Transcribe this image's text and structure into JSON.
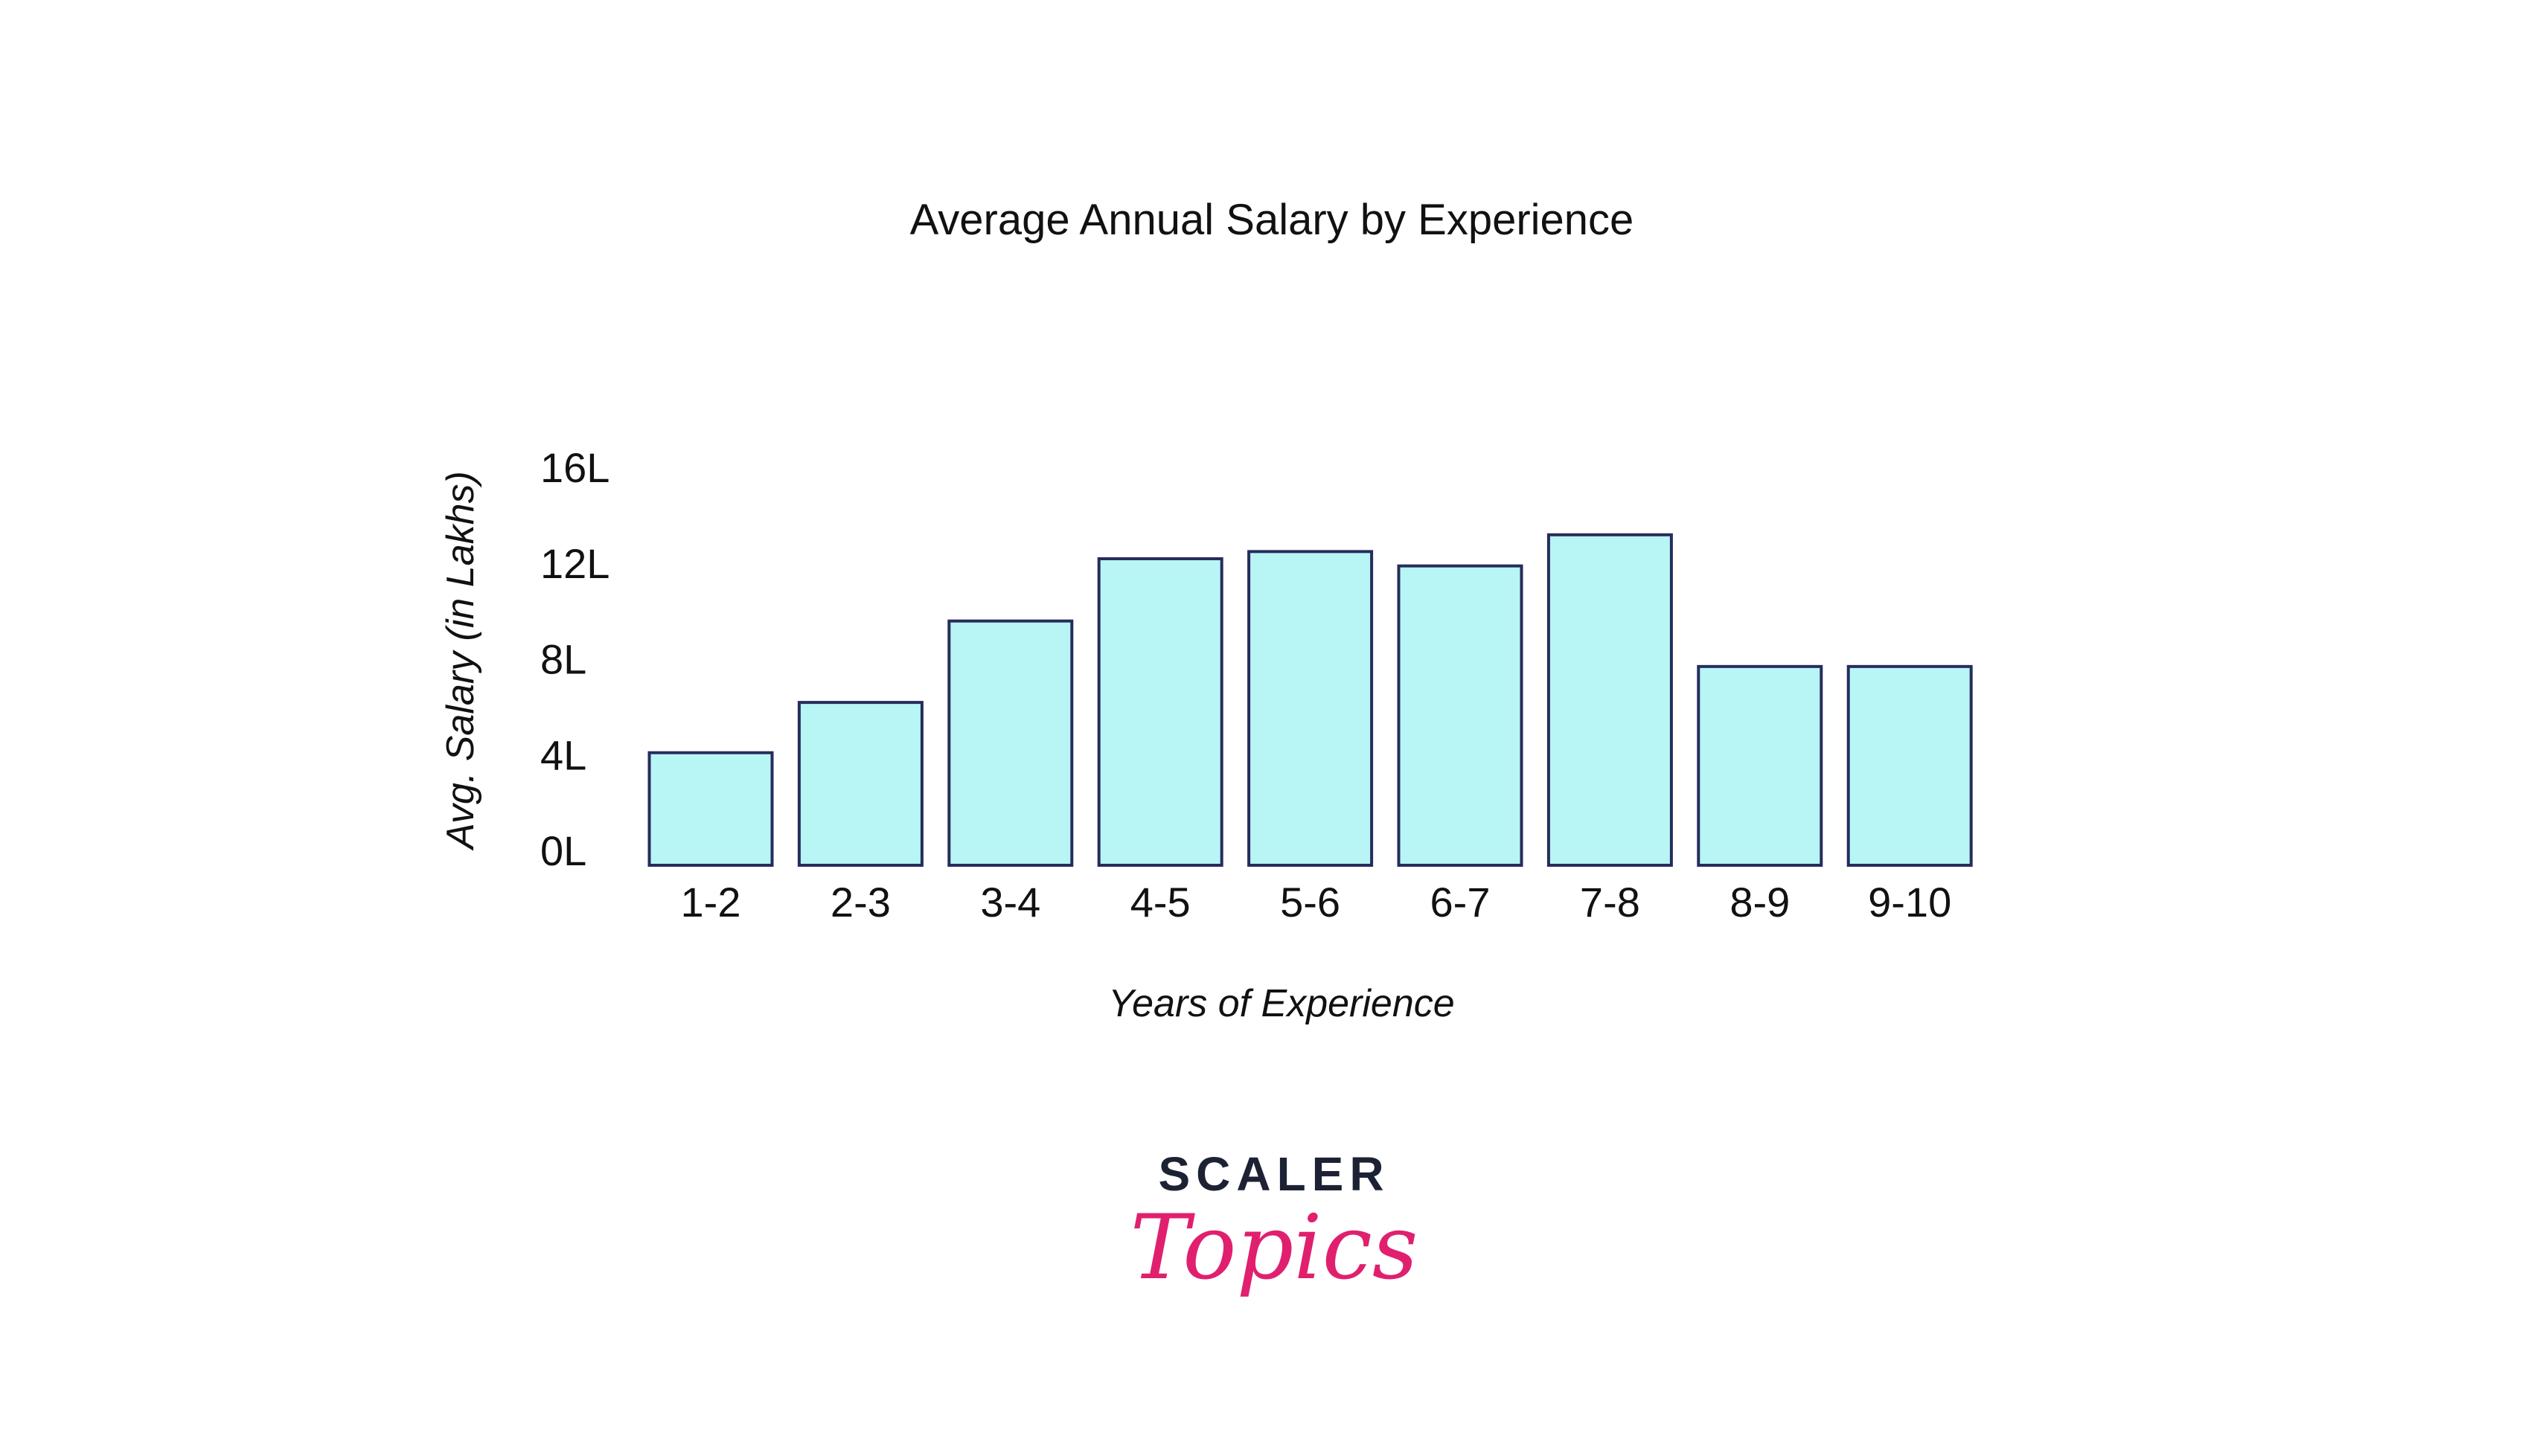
{
  "chart_data": {
    "type": "bar",
    "title": "Average Annual Salary by Experience",
    "xlabel": "Years of Experience",
    "ylabel": "Avg. Salary (in Lakhs)",
    "categories": [
      "1-2",
      "2-3",
      "3-4",
      "4-5",
      "5-6",
      "6-7",
      "7-8",
      "8-9",
      "9-10"
    ],
    "values": [
      4.7,
      6.8,
      10.2,
      12.8,
      13.1,
      12.5,
      13.8,
      8.3,
      8.3
    ],
    "ylim": [
      0,
      16
    ],
    "yticks": [
      0,
      4,
      8,
      12,
      16
    ],
    "ytick_labels": [
      "0L",
      "4L",
      "8L",
      "12L",
      "16L"
    ],
    "grid": false,
    "colors": {
      "fill": "#b8f5f5",
      "stroke": "#262c5c"
    }
  },
  "logo": {
    "line1": "SCALER",
    "line2": "Topics"
  }
}
